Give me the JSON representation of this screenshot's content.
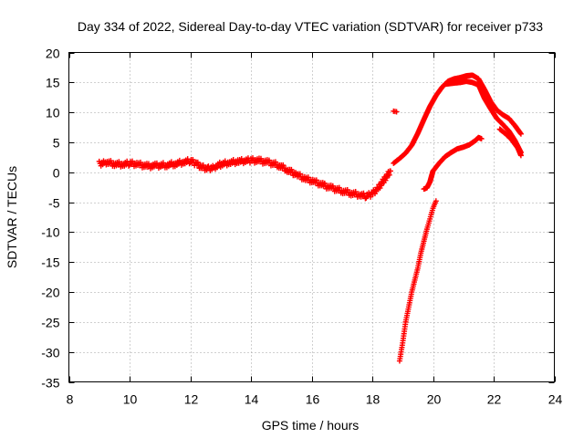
{
  "chart_data": {
    "type": "scatter",
    "title": "Day 334 of 2022, Sidereal Day-to-day VTEC variation (SDTVAR) for receiver p733",
    "xlabel": "GPS time / hours",
    "ylabel": "SDTVAR / TECUs",
    "xlim": [
      8,
      24
    ],
    "ylim": [
      -35,
      20
    ],
    "xticks": [
      8,
      10,
      12,
      14,
      16,
      18,
      20,
      22,
      24
    ],
    "yticks": [
      -35,
      -30,
      -25,
      -20,
      -15,
      -10,
      -5,
      0,
      5,
      10,
      15,
      20
    ],
    "grid": true,
    "marker": "plus",
    "color": "#ff0000",
    "series": [
      {
        "name": "main-track",
        "points": [
          [
            9.0,
            1.4
          ],
          [
            9.2,
            1.7
          ],
          [
            9.5,
            1.4
          ],
          [
            9.8,
            1.3
          ],
          [
            10.0,
            1.5
          ],
          [
            10.3,
            1.3
          ],
          [
            10.6,
            1.0
          ],
          [
            10.9,
            1.1
          ],
          [
            11.2,
            1.2
          ],
          [
            11.5,
            1.4
          ],
          [
            11.8,
            1.7
          ],
          [
            12.0,
            1.9
          ],
          [
            12.2,
            1.4
          ],
          [
            12.4,
            0.8
          ],
          [
            12.6,
            0.6
          ],
          [
            12.8,
            0.9
          ],
          [
            13.0,
            1.3
          ],
          [
            13.3,
            1.6
          ],
          [
            13.6,
            1.8
          ],
          [
            14.0,
            2.0
          ],
          [
            14.3,
            1.9
          ],
          [
            14.6,
            1.6
          ],
          [
            14.9,
            1.2
          ],
          [
            15.2,
            0.4
          ],
          [
            15.5,
            -0.4
          ],
          [
            15.8,
            -1.1
          ],
          [
            16.1,
            -1.6
          ],
          [
            16.4,
            -2.2
          ],
          [
            16.7,
            -2.7
          ],
          [
            17.0,
            -3.1
          ],
          [
            17.3,
            -3.5
          ],
          [
            17.6,
            -3.8
          ],
          [
            17.8,
            -4.0
          ],
          [
            18.0,
            -3.6
          ],
          [
            18.2,
            -2.6
          ],
          [
            18.4,
            -1.2
          ],
          [
            18.6,
            0.2
          ]
        ]
      },
      {
        "name": "upper-branch-a",
        "points": [
          [
            18.7,
            1.5
          ],
          [
            18.9,
            2.3
          ],
          [
            19.1,
            3.2
          ],
          [
            19.3,
            4.5
          ],
          [
            19.5,
            6.5
          ],
          [
            19.7,
            8.8
          ],
          [
            19.9,
            11.0
          ],
          [
            20.1,
            12.8
          ],
          [
            20.3,
            14.2
          ],
          [
            20.5,
            15.2
          ],
          [
            20.7,
            15.6
          ],
          [
            20.9,
            15.8
          ],
          [
            21.1,
            16.1
          ],
          [
            21.3,
            16.2
          ],
          [
            21.5,
            15.6
          ],
          [
            21.7,
            13.8
          ],
          [
            21.9,
            11.8
          ],
          [
            22.1,
            10.4
          ],
          [
            22.3,
            9.6
          ],
          [
            22.5,
            9.0
          ],
          [
            22.7,
            7.8
          ],
          [
            22.9,
            6.4
          ]
        ]
      },
      {
        "name": "upper-branch-b",
        "points": [
          [
            20.4,
            14.7
          ],
          [
            20.7,
            14.9
          ],
          [
            20.9,
            15.0
          ],
          [
            21.1,
            15.2
          ],
          [
            21.3,
            15.0
          ],
          [
            21.5,
            14.6
          ],
          [
            21.7,
            12.3
          ],
          [
            21.9,
            10.6
          ],
          [
            22.1,
            9.0
          ],
          [
            22.3,
            8.0
          ],
          [
            22.5,
            6.9
          ],
          [
            22.7,
            5.3
          ],
          [
            22.9,
            3.3
          ]
        ]
      },
      {
        "name": "right-tail",
        "points": [
          [
            22.2,
            7.2
          ],
          [
            22.4,
            6.4
          ],
          [
            22.6,
            5.4
          ],
          [
            22.8,
            4.0
          ],
          [
            22.9,
            2.8
          ]
        ]
      },
      {
        "name": "outlier-cluster",
        "points": [
          [
            18.7,
            10.2
          ],
          [
            18.8,
            10.1
          ]
        ]
      },
      {
        "name": "lower-branch",
        "points": [
          [
            19.7,
            -2.8
          ],
          [
            19.8,
            -2.6
          ],
          [
            19.9,
            -1.6
          ],
          [
            20.0,
            0.2
          ],
          [
            20.2,
            1.5
          ],
          [
            20.4,
            2.6
          ],
          [
            20.6,
            3.3
          ],
          [
            20.8,
            3.9
          ],
          [
            21.0,
            4.2
          ],
          [
            21.2,
            4.6
          ],
          [
            21.4,
            5.3
          ],
          [
            21.5,
            5.8
          ],
          [
            21.6,
            5.6
          ]
        ]
      },
      {
        "name": "steep-lower",
        "points": [
          [
            18.9,
            -31.5
          ],
          [
            19.0,
            -28.5
          ],
          [
            19.1,
            -25.0
          ],
          [
            19.2,
            -22.5
          ],
          [
            19.3,
            -20.0
          ],
          [
            19.4,
            -18.0
          ],
          [
            19.5,
            -16.0
          ],
          [
            19.6,
            -13.5
          ],
          [
            19.7,
            -11.5
          ],
          [
            19.8,
            -9.5
          ],
          [
            19.9,
            -7.8
          ],
          [
            20.0,
            -6.0
          ],
          [
            20.1,
            -4.8
          ]
        ]
      }
    ]
  }
}
